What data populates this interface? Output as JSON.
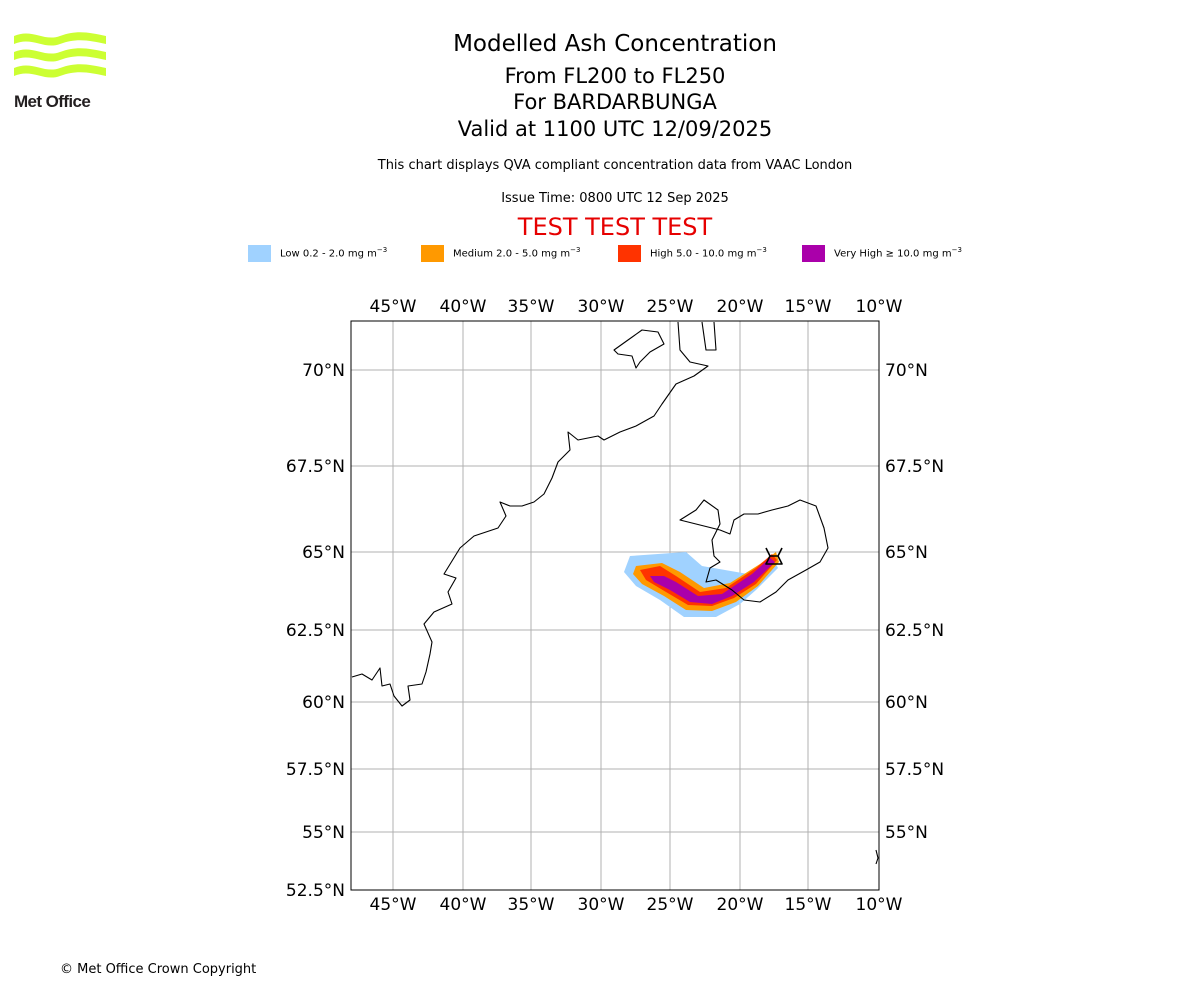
{
  "logo": {
    "wordmark": "Met Office",
    "color": "#ccff33"
  },
  "title": {
    "main": "Modelled Ash Concentration",
    "levels": "From FL200 to FL250",
    "volcano": "For BARDARBUNGA",
    "valid": "Valid at 1100 UTC 12/09/2025"
  },
  "subtitle": "This chart displays QVA compliant concentration data from VAAC London",
  "issue_time": "Issue Time: 0800 UTC 12 Sep 2025",
  "test_banner": "TEST TEST TEST",
  "legend": [
    {
      "label": "Low 0.2 - 2.0 mg m",
      "color": "#a0d2ff"
    },
    {
      "label": "Medium 2.0 - 5.0 mg m",
      "color": "#ff9900"
    },
    {
      "label": "High 5.0 - 10.0 mg m",
      "color": "#ff3300"
    },
    {
      "label": "Very High ≥ 10.0 mg m",
      "color": "#aa00aa"
    }
  ],
  "legend_exponent": "−3",
  "map": {
    "lon_ticks": [
      "45°W",
      "40°W",
      "35°W",
      "30°W",
      "25°W",
      "20°W",
      "15°W",
      "10°W"
    ],
    "lat_ticks_left": [
      "70°N",
      "67.5°N",
      "65°N",
      "62.5°N",
      "60°N",
      "57.5°N",
      "55°N",
      "52.5°N"
    ],
    "lat_ticks_right": [
      "70°N",
      "67.5°N",
      "65°N",
      "62.5°N",
      "60°N",
      "57.5°N",
      "55°N"
    ],
    "gridline_color": "#b0b0b0"
  },
  "copyright": "© Met Office Crown Copyright"
}
